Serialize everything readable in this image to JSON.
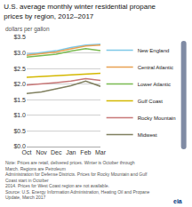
{
  "chart_data": {
    "type": "line",
    "title": "U.S. average monthly winter residential propane prices by region, 2012–2017",
    "subtitle": "dollars per gallon",
    "categories": [
      "Oct",
      "Nov",
      "Dec",
      "Jan",
      "Feb",
      "Mar"
    ],
    "series": [
      {
        "name": "New England",
        "color": "#7ec8e8",
        "values": [
          2.95,
          3.0,
          3.07,
          3.17,
          3.25,
          3.28
        ]
      },
      {
        "name": "Central Atlantic",
        "color": "#e8a050",
        "values": [
          2.92,
          2.97,
          3.03,
          3.13,
          3.22,
          3.25
        ]
      },
      {
        "name": "Lower Atlantic",
        "color": "#7aba50",
        "values": [
          2.87,
          2.91,
          2.96,
          3.06,
          3.14,
          3.07
        ]
      },
      {
        "name": "Gulf Coast",
        "color": "#d4b800",
        "values": [
          2.22,
          2.25,
          2.27,
          2.3,
          2.33,
          2.35
        ]
      },
      {
        "name": "Rocky Mountain",
        "color": "#c87878",
        "values": [
          1.97,
          2.0,
          2.05,
          2.1,
          2.18,
          2.12
        ]
      },
      {
        "name": "Midwest",
        "color": "#808060",
        "values": [
          1.7,
          1.75,
          1.85,
          1.95,
          2.1,
          1.93
        ]
      }
    ],
    "ylim": [
      0.0,
      3.5
    ],
    "yticks": [
      {
        "value": 0.0,
        "label": "$0.0"
      },
      {
        "value": 0.5,
        "label": "$0.5"
      },
      {
        "value": 1.0,
        "label": "$1.0"
      },
      {
        "value": 1.5,
        "label": "$1.5"
      },
      {
        "value": 2.0,
        "label": "$2.0"
      },
      {
        "value": 2.5,
        "label": "$2.5"
      },
      {
        "value": 3.0,
        "label": "$3.0"
      },
      {
        "value": 3.5,
        "label": "$3.5"
      }
    ],
    "grid": true,
    "legend": "right",
    "annotations": [
      "Note: Prices are retail, delivered prices. Winter is October through March. Regions are Petroleum",
      "Administration for Defense Districts. Prices for Rocky Mountain and Gulf Coast start in October",
      "2014. Prices for West Coast region are not available.",
      "Source: U.S. Energy Information Administration, Heating Oil and Propane Update, March 2017",
      "eia"
    ]
  }
}
